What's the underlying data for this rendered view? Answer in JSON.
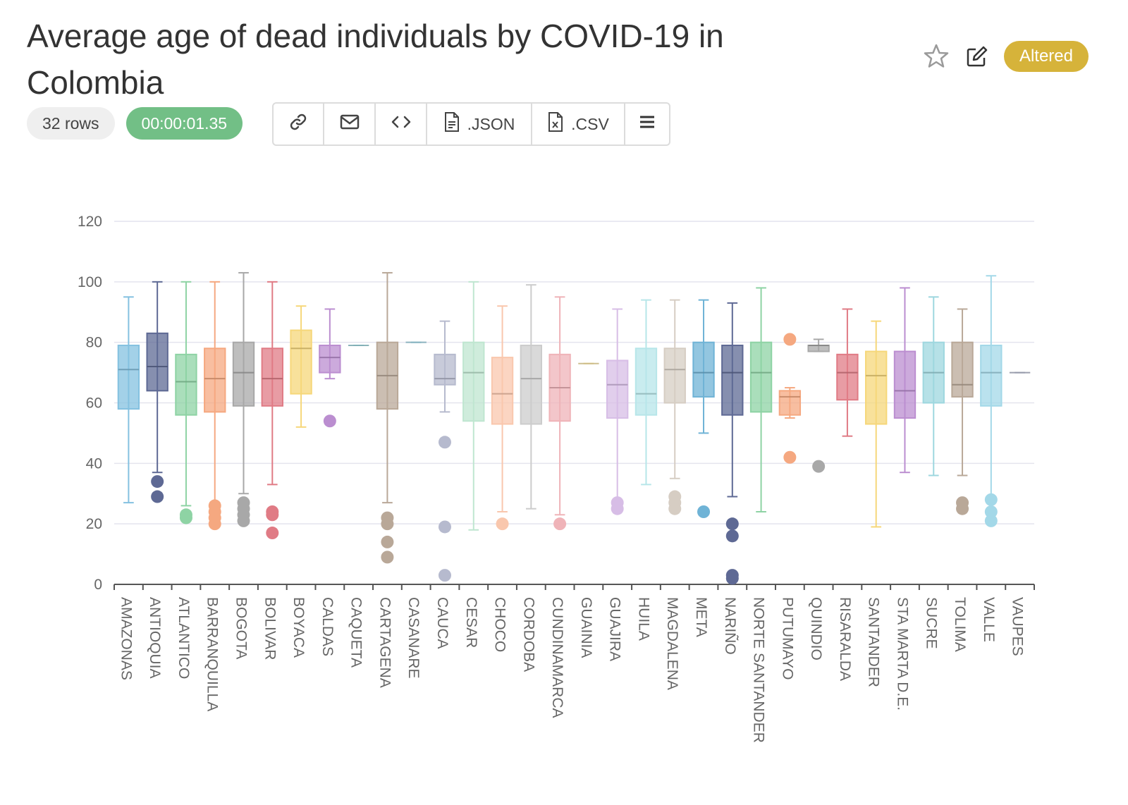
{
  "header": {
    "title": "Average age of dead individuals by COVID-19 in Colombia",
    "status": "Altered",
    "rows": "32 rows",
    "elapsed": "00:00:01.35"
  },
  "toolbar": {
    "json_label": ".JSON",
    "csv_label": ".CSV"
  },
  "icons": [
    "star-icon",
    "edit-icon",
    "link-icon",
    "mail-icon",
    "code-icon",
    "file-json-icon",
    "file-csv-icon",
    "menu-icon"
  ],
  "colors": {
    "accent": "#d6b33a",
    "success": "#72bf86"
  },
  "chart_data": {
    "type": "box",
    "ylim": [
      0,
      120
    ],
    "yticks": [
      0,
      20,
      40,
      60,
      80,
      100,
      120
    ],
    "categories": [
      {
        "name": "AMAZONAS",
        "color": "#84c1e0",
        "min": 27,
        "q1": 58,
        "median": 71,
        "q3": 79,
        "max": 95,
        "outliers": []
      },
      {
        "name": "ANTIOQUIA",
        "color": "#5e6994",
        "min": 37,
        "q1": 64,
        "median": 72,
        "q3": 83,
        "max": 100,
        "outliers": [
          34,
          29
        ]
      },
      {
        "name": "ATLANTICO",
        "color": "#8ed3a4",
        "min": 26,
        "q1": 56,
        "median": 67,
        "q3": 76,
        "max": 100,
        "outliers": [
          23,
          22
        ]
      },
      {
        "name": "BARRANQUILLA",
        "color": "#f5a880",
        "min": 27,
        "q1": 57,
        "median": 68,
        "q3": 78,
        "max": 100,
        "outliers": [
          26,
          24,
          22,
          20
        ]
      },
      {
        "name": "BOGOTA",
        "color": "#a8a8a8",
        "min": 30,
        "q1": 59,
        "median": 70,
        "q3": 80,
        "max": 103,
        "outliers": [
          27,
          25,
          23,
          21
        ]
      },
      {
        "name": "BOLIVAR",
        "color": "#e07b85",
        "min": 33,
        "q1": 59,
        "median": 68,
        "q3": 78,
        "max": 100,
        "outliers": [
          24,
          23,
          17
        ]
      },
      {
        "name": "BOYACA",
        "color": "#f6d77a",
        "min": 52,
        "q1": 63,
        "median": 78,
        "q3": 84,
        "max": 92,
        "outliers": []
      },
      {
        "name": "CALDAS",
        "color": "#bb8ed0",
        "min": 68,
        "q1": 70,
        "median": 75,
        "q3": 79,
        "max": 91,
        "outliers": [
          54
        ]
      },
      {
        "name": "CAQUETA",
        "color": "#9ed7df",
        "min": 79,
        "q1": 79,
        "median": 79,
        "q3": 79,
        "max": 79,
        "outliers": []
      },
      {
        "name": "CARTAGENA",
        "color": "#b9a898",
        "min": 27,
        "q1": 58,
        "median": 69,
        "q3": 80,
        "max": 103,
        "outliers": [
          22,
          20,
          14,
          9
        ]
      },
      {
        "name": "CASANARE",
        "color": "#a3d8e8",
        "min": 80,
        "q1": 80,
        "median": 80,
        "q3": 80,
        "max": 80,
        "outliers": []
      },
      {
        "name": "CAUCA",
        "color": "#b6bace",
        "min": 57,
        "q1": 66,
        "median": 68,
        "q3": 76,
        "max": 87,
        "outliers": [
          47,
          19,
          3
        ]
      },
      {
        "name": "CESAR",
        "color": "#bfe6d0",
        "min": 18,
        "q1": 54,
        "median": 70,
        "q3": 80,
        "max": 100,
        "outliers": []
      },
      {
        "name": "CHOCO",
        "color": "#f9c7ad",
        "min": 24,
        "q1": 53,
        "median": 63,
        "q3": 75,
        "max": 92,
        "outliers": [
          20
        ]
      },
      {
        "name": "CORDOBA",
        "color": "#cccccc",
        "min": 25,
        "q1": 53,
        "median": 68,
        "q3": 79,
        "max": 99,
        "outliers": []
      },
      {
        "name": "CUNDINAMARCA",
        "color": "#efb3b8",
        "min": 23,
        "q1": 54,
        "median": 65,
        "q3": 76,
        "max": 95,
        "outliers": [
          20
        ]
      },
      {
        "name": "GUAINIA",
        "color": "#f9e6a6",
        "min": 73,
        "q1": 73,
        "median": 73,
        "q3": 73,
        "max": 73,
        "outliers": []
      },
      {
        "name": "GUAJIRA",
        "color": "#d7bde6",
        "min": 28,
        "q1": 55,
        "median": 66,
        "q3": 74,
        "max": 91,
        "outliers": [
          27,
          25
        ]
      },
      {
        "name": "HUILA",
        "color": "#b7e6e9",
        "min": 33,
        "q1": 56,
        "median": 63,
        "q3": 78,
        "max": 94,
        "outliers": []
      },
      {
        "name": "MAGDALENA",
        "color": "#d6cdc3",
        "min": 35,
        "q1": 60,
        "median": 71,
        "q3": 78,
        "max": 94,
        "outliers": [
          29,
          27,
          25
        ]
      },
      {
        "name": "META",
        "color": "#6fb3d6",
        "min": 50,
        "q1": 62,
        "median": 70,
        "q3": 80,
        "max": 94,
        "outliers": [
          24
        ]
      },
      {
        "name": "NARIÑO",
        "color": "#5e6994",
        "min": 29,
        "q1": 56,
        "median": 70,
        "q3": 79,
        "max": 93,
        "outliers": [
          20,
          16,
          3,
          2
        ]
      },
      {
        "name": "NORTE SANTANDER",
        "color": "#8ed3a4",
        "min": 24,
        "q1": 57,
        "median": 70,
        "q3": 80,
        "max": 98,
        "outliers": []
      },
      {
        "name": "PUTUMAYO",
        "color": "#f5a880",
        "min": 55,
        "q1": 56,
        "median": 62,
        "q3": 64,
        "max": 65,
        "outliers": [
          81,
          42
        ]
      },
      {
        "name": "QUINDIO",
        "color": "#a8a8a8",
        "min": 77,
        "q1": 77,
        "median": 79,
        "q3": 79,
        "max": 81,
        "outliers": [
          39
        ]
      },
      {
        "name": "RISARALDA",
        "color": "#e07b85",
        "min": 49,
        "q1": 61,
        "median": 70,
        "q3": 76,
        "max": 91,
        "outliers": []
      },
      {
        "name": "SANTANDER",
        "color": "#f6d77a",
        "min": 19,
        "q1": 53,
        "median": 69,
        "q3": 77,
        "max": 87,
        "outliers": []
      },
      {
        "name": "STA MARTA D.E.",
        "color": "#bb8ed0",
        "min": 37,
        "q1": 55,
        "median": 64,
        "q3": 77,
        "max": 98,
        "outliers": []
      },
      {
        "name": "SUCRE",
        "color": "#9ed7df",
        "min": 36,
        "q1": 60,
        "median": 70,
        "q3": 80,
        "max": 95,
        "outliers": []
      },
      {
        "name": "TOLIMA",
        "color": "#b9a898",
        "min": 36,
        "q1": 62,
        "median": 66,
        "q3": 80,
        "max": 91,
        "outliers": [
          27,
          25
        ]
      },
      {
        "name": "VALLE",
        "color": "#a3d8e8",
        "min": 29,
        "q1": 59,
        "median": 70,
        "q3": 79,
        "max": 102,
        "outliers": [
          28,
          24,
          21
        ]
      },
      {
        "name": "VAUPES",
        "color": "#b6bace",
        "min": 70,
        "q1": 70,
        "median": 70,
        "q3": 70,
        "max": 70,
        "outliers": []
      }
    ]
  }
}
